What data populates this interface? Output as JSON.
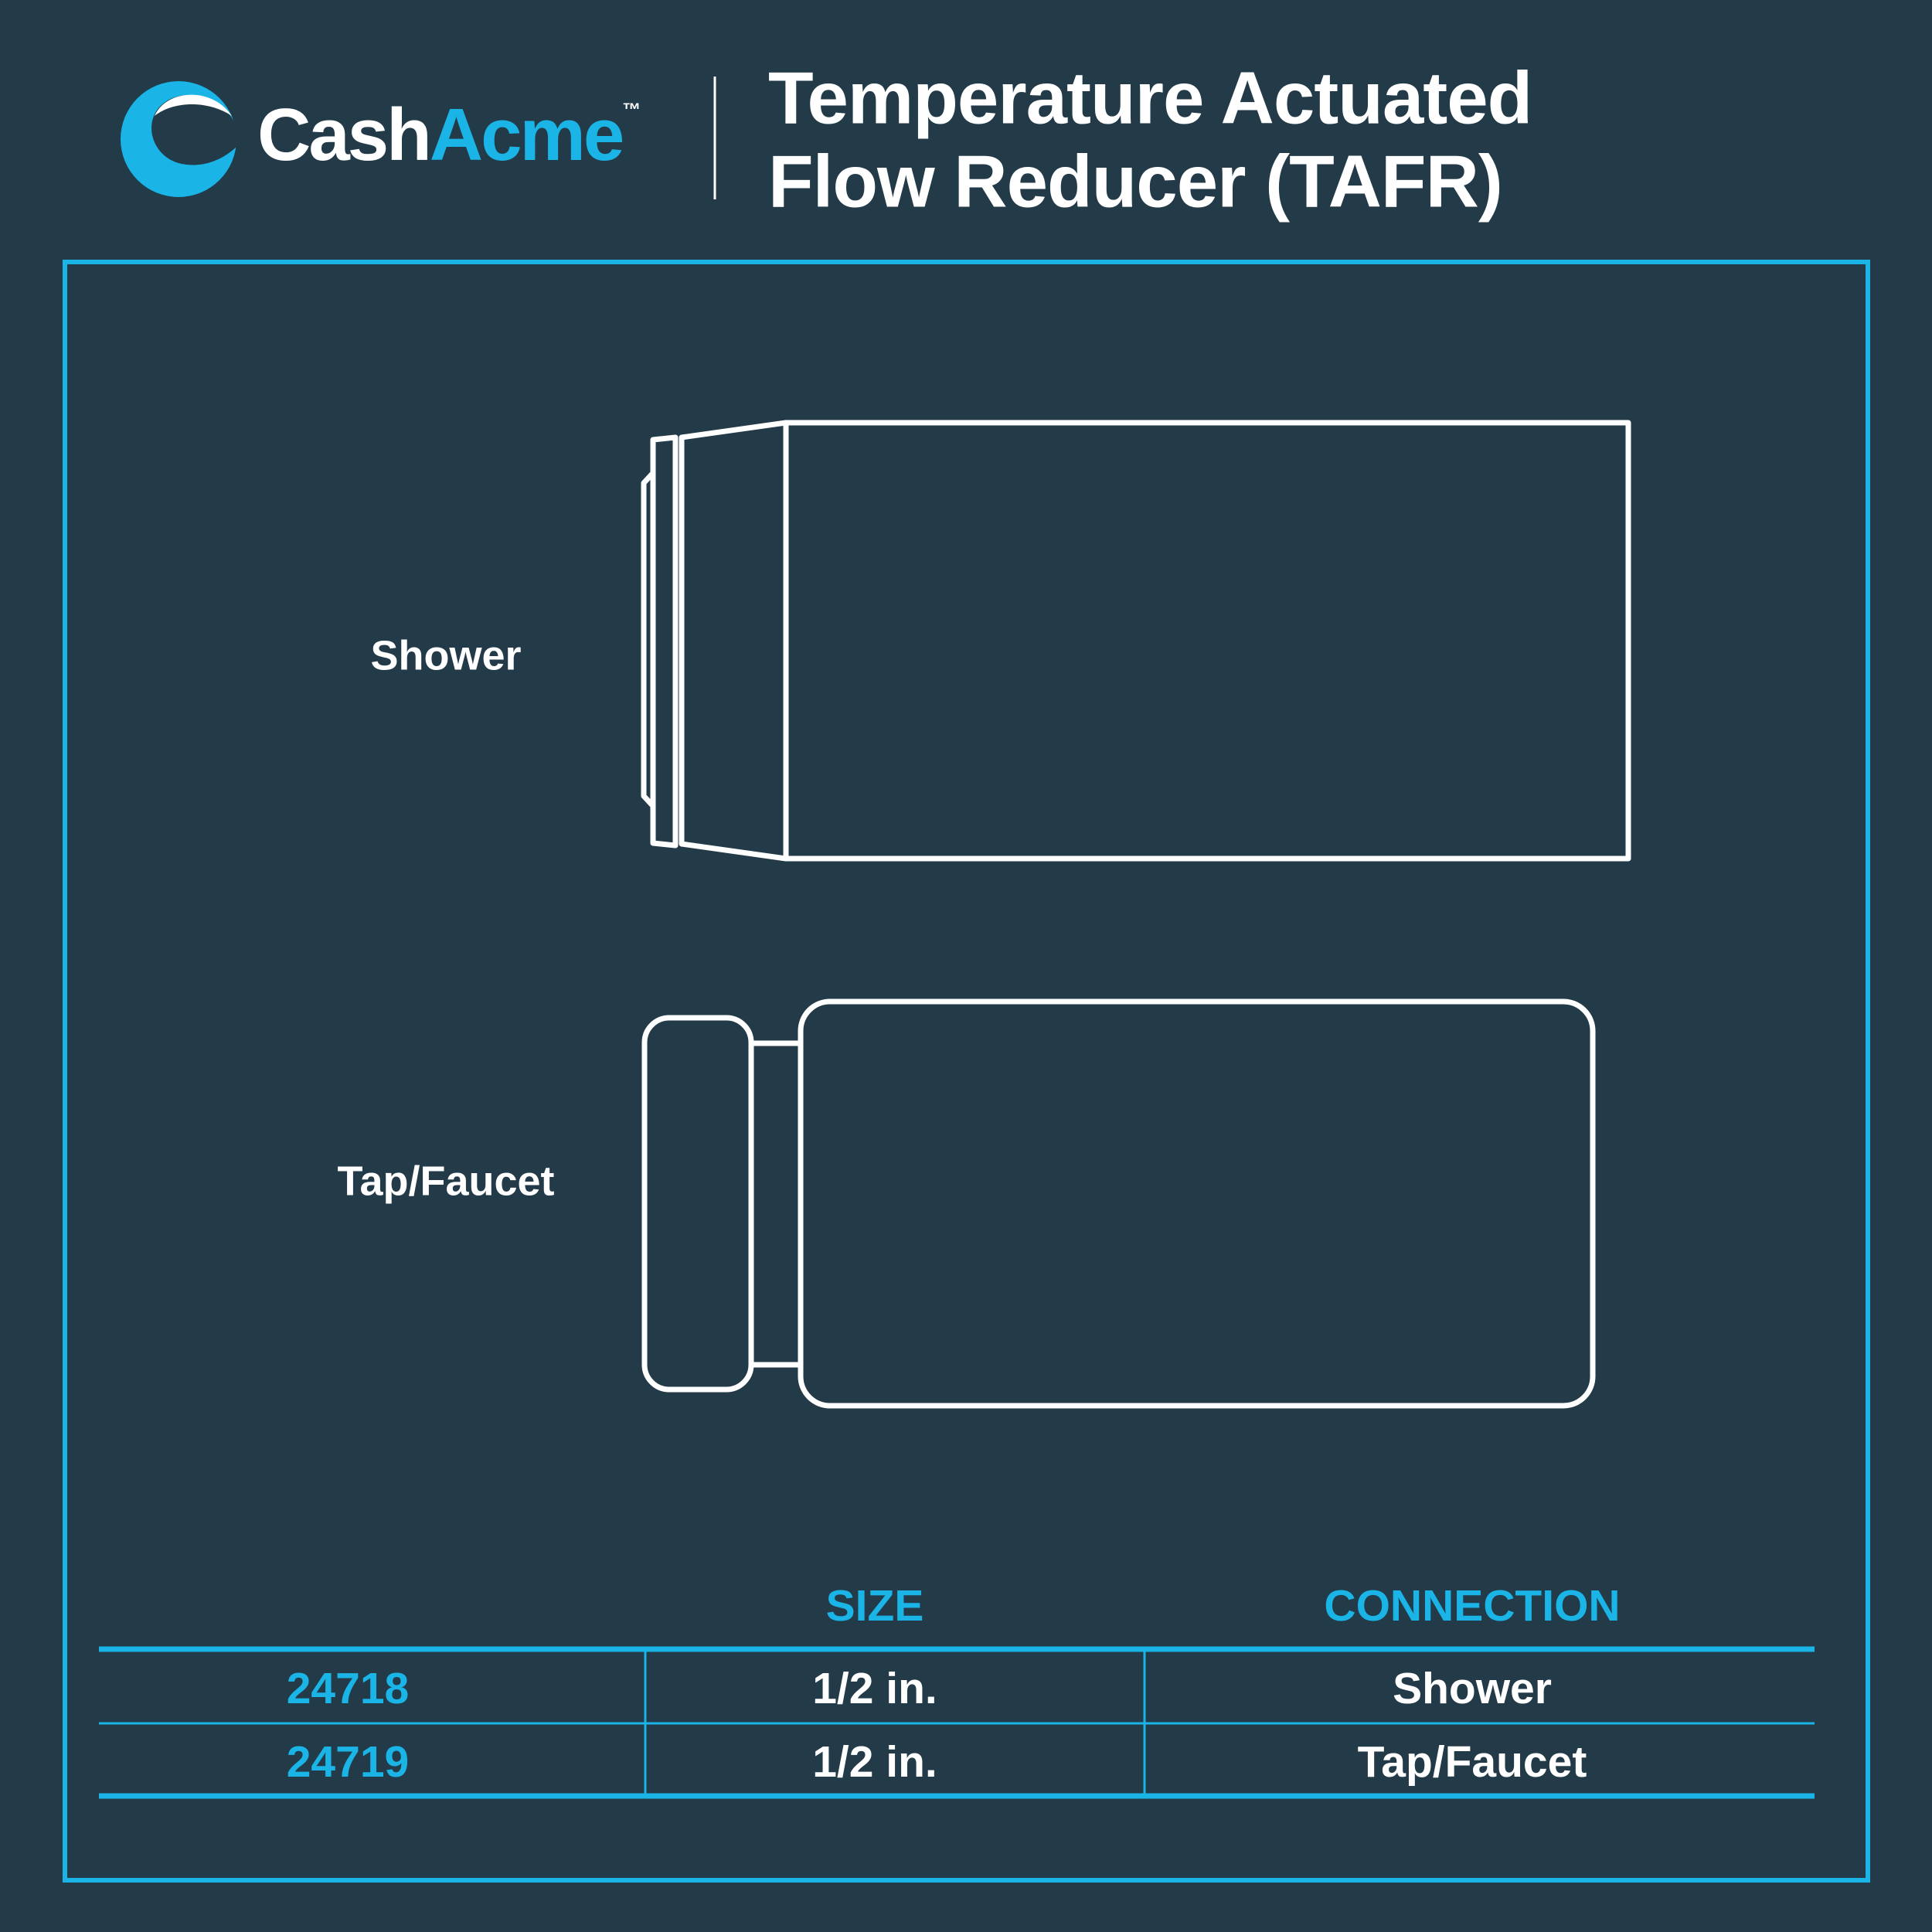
{
  "header": {
    "brand_first": "Cash",
    "brand_second": "Acme",
    "trademark": "™",
    "title_lines": [
      "Temperature Actuated",
      "Flow Reducer (TAFR)"
    ]
  },
  "diagrams": [
    {
      "label": "Shower"
    },
    {
      "label": "Tap/Faucet"
    }
  ],
  "table": {
    "headers": [
      "SIZE",
      "CONNECTION"
    ],
    "rows": [
      [
        "24718",
        "1/2 in.",
        "Shower"
      ],
      [
        "24719",
        "1/2 in.",
        "Tap/Faucet"
      ]
    ]
  }
}
